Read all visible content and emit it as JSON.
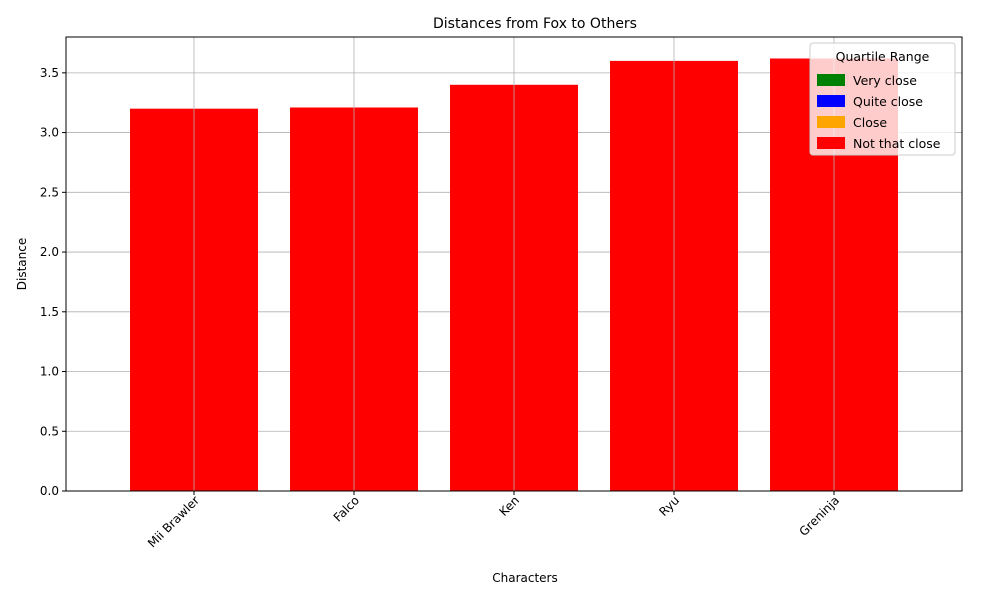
{
  "chart_data": {
    "type": "bar",
    "title": "Distances from Fox to Others",
    "xlabel": "Characters",
    "ylabel": "Distance",
    "categories": [
      "Mii Brawler",
      "Falco",
      "Ken",
      "Ryu",
      "Greninja"
    ],
    "values": [
      3.2,
      3.21,
      3.4,
      3.6,
      3.62
    ],
    "bar_colors": [
      "#ff0000",
      "#ff0000",
      "#ff0000",
      "#ff0000",
      "#ff0000"
    ],
    "ylim": [
      0,
      3.8
    ],
    "yticks": [
      "0.0",
      "0.5",
      "1.0",
      "1.5",
      "2.0",
      "2.5",
      "3.0",
      "3.5"
    ],
    "grid": true,
    "legend": {
      "title": "Quartile Range",
      "placement": "top-right",
      "entries": [
        {
          "label": "Very close",
          "color": "#008000"
        },
        {
          "label": "Quite close",
          "color": "#0000ff"
        },
        {
          "label": "Close",
          "color": "#ffa500"
        },
        {
          "label": "Not that close",
          "color": "#ff0000"
        }
      ]
    }
  }
}
